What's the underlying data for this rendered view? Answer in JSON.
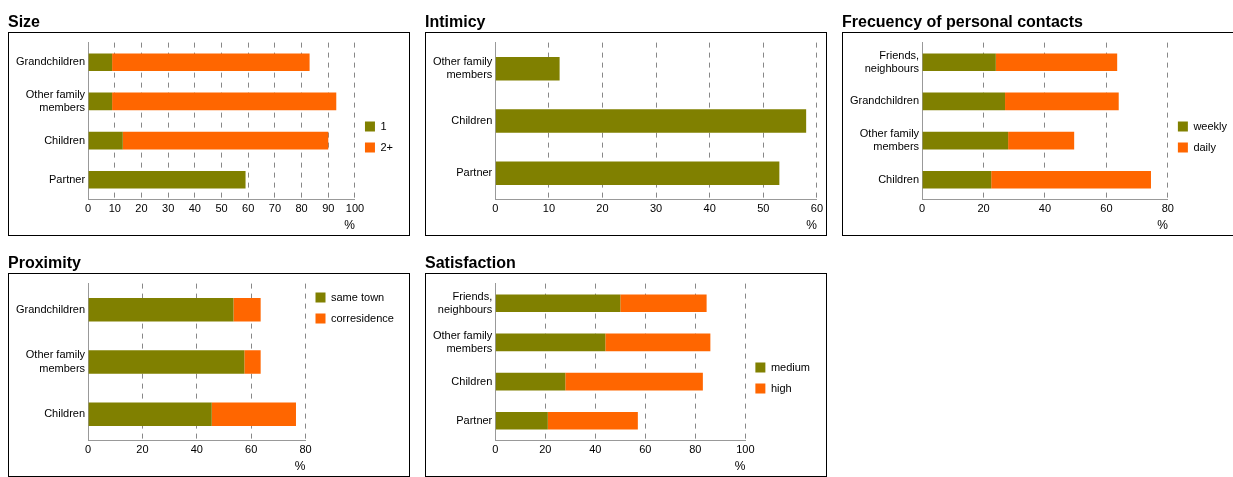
{
  "chart_data": [
    {
      "type": "bar",
      "title": "Size",
      "orientation": "horizontal",
      "stacked": true,
      "categories": [
        "Grandchildren",
        "Other family members",
        "Children",
        "Partner"
      ],
      "series": [
        {
          "name": "1",
          "color": "#808000",
          "values": [
            9,
            9,
            13,
            59
          ]
        },
        {
          "name": "2+",
          "color": "#ff6600",
          "values": [
            74,
            84,
            77,
            null
          ]
        }
      ],
      "xlim": [
        0,
        100
      ],
      "xticks": [
        0,
        10,
        20,
        30,
        40,
        50,
        60,
        70,
        80,
        90,
        100
      ],
      "xlabel": "%",
      "grid": "x",
      "legend": "right"
    },
    {
      "type": "bar",
      "title": "Intimicy",
      "orientation": "horizontal",
      "categories": [
        "Other family members",
        "Children",
        "Partner"
      ],
      "series": [
        {
          "color": "#808000",
          "values": [
            12,
            58,
            53
          ]
        }
      ],
      "xlim": [
        0,
        60
      ],
      "xticks": [
        0,
        10,
        20,
        30,
        40,
        50,
        60
      ],
      "xlabel": "%",
      "grid": "x"
    },
    {
      "type": "bar",
      "title": "Frecuency of personal contacts",
      "orientation": "horizontal",
      "stacked": true,
      "categories": [
        "Friends, neighbours",
        "Grandchildren",
        "Other family members",
        "Children"
      ],
      "series": [
        {
          "name": "weekly",
          "color": "#808000",
          "values": [
            24,
            27,
            28,
            22.5
          ]
        },
        {
          "name": "daily",
          "color": "#ff6600",
          "values": [
            39.5,
            37,
            21.5,
            52
          ]
        }
      ],
      "xlim": [
        0,
        80
      ],
      "xticks": [
        0,
        20,
        40,
        60,
        80
      ],
      "xlabel": "%",
      "grid": "x",
      "legend": "right"
    },
    {
      "type": "bar",
      "title": "Proximity",
      "orientation": "horizontal",
      "stacked": true,
      "categories": [
        "Grandchildren",
        "Other family members",
        "Children"
      ],
      "series": [
        {
          "name": "same town",
          "color": "#808000",
          "values": [
            53.5,
            57.5,
            45.5
          ]
        },
        {
          "name": "corresidence",
          "color": "#ff6600",
          "values": [
            10,
            6,
            31
          ]
        }
      ],
      "xlim": [
        0,
        80
      ],
      "xticks": [
        0,
        20,
        40,
        60,
        80
      ],
      "xlabel": "%",
      "grid": "x",
      "legend": "top right"
    },
    {
      "type": "bar",
      "title": "Satisfaction",
      "orientation": "horizontal",
      "stacked": true,
      "categories": [
        "Friends, neighbours",
        "Other family members",
        "Children",
        "Partner"
      ],
      "series": [
        {
          "name": "medium",
          "color": "#808000",
          "values": [
            50,
            44,
            28,
            21
          ]
        },
        {
          "name": "high",
          "color": "#ff6600",
          "values": [
            34.5,
            42,
            55,
            36
          ]
        }
      ],
      "xlim": [
        0,
        100
      ],
      "xticks": [
        0,
        20,
        40,
        60,
        80,
        100
      ],
      "xlabel": "%",
      "grid": "x",
      "legend": "right"
    }
  ]
}
